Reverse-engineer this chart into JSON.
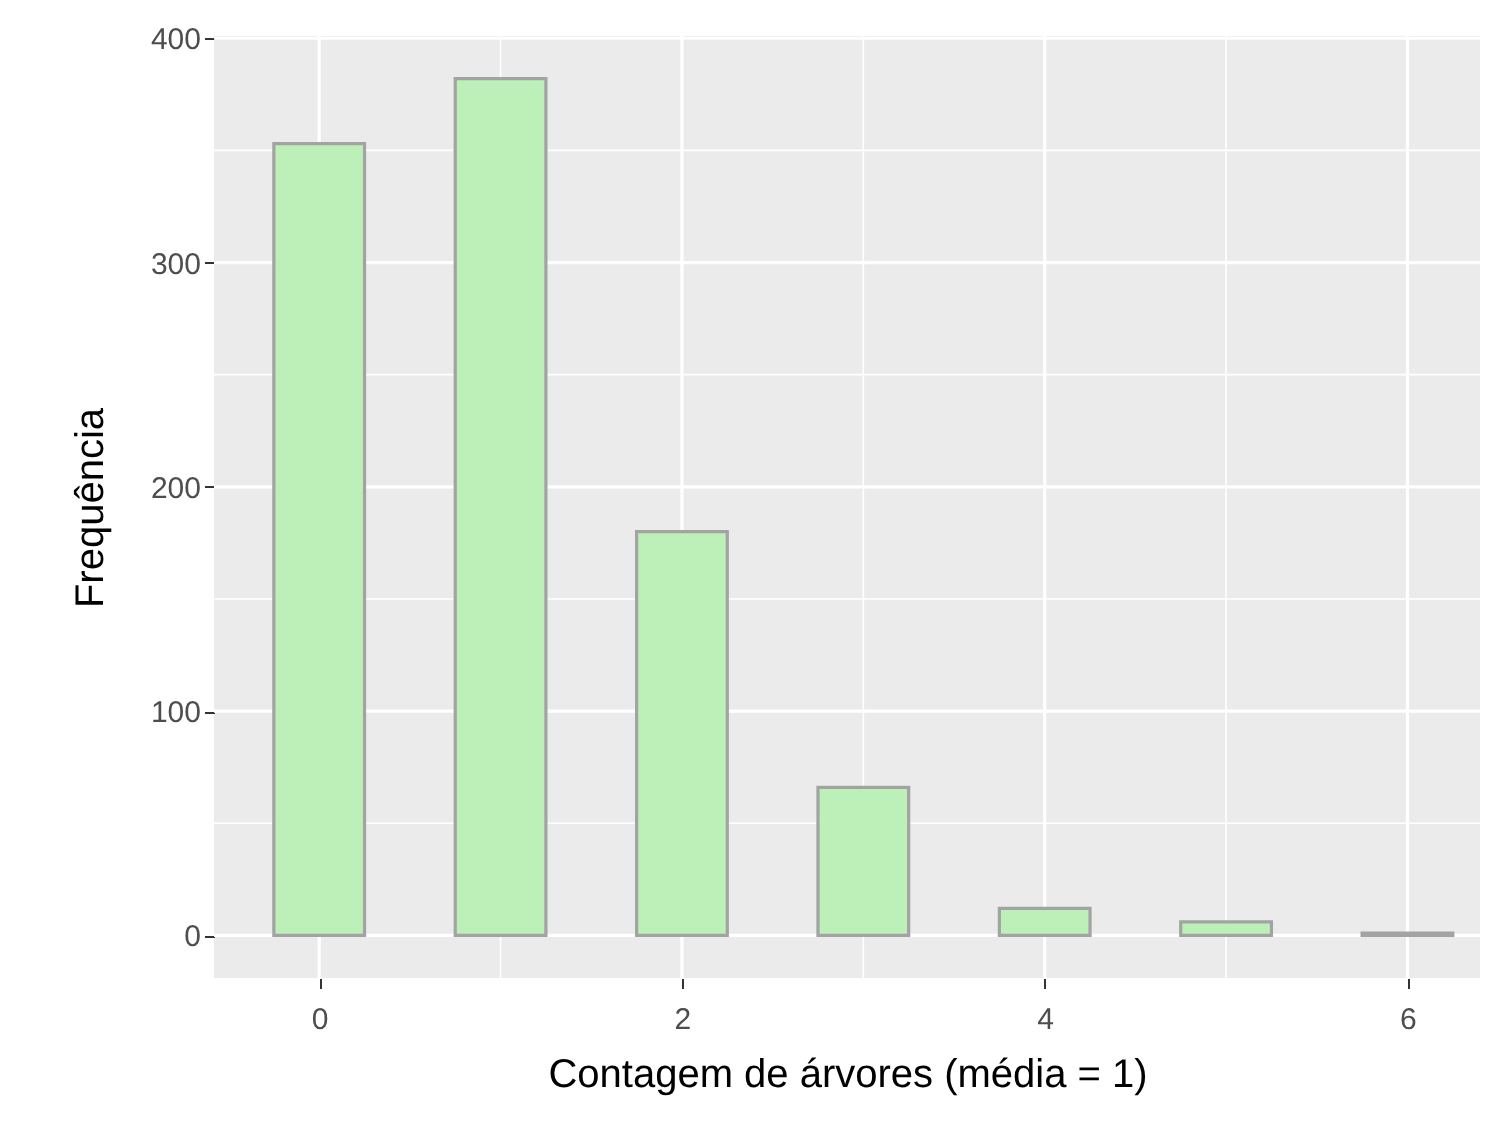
{
  "chart_data": {
    "type": "bar",
    "xlabel": "Contagem de árvores (média = 1)",
    "ylabel": "Frequência",
    "x": [
      0,
      1,
      2,
      3,
      4,
      5,
      6
    ],
    "values": [
      353,
      382,
      180,
      66,
      12,
      6,
      1
    ],
    "color": "#bdefb9",
    "xlim": [
      -0.58,
      6.4
    ],
    "ylim": [
      -19,
      401
    ],
    "xticks": [
      0,
      2,
      4,
      6,
      {
        "value": 1,
        "label": null
      },
      {
        "value": 3,
        "label": null
      },
      {
        "value": 5,
        "label": null
      }
    ],
    "yticks": [
      0,
      100,
      200,
      300,
      400,
      {
        "value": 50,
        "label": null
      },
      {
        "value": 150,
        "label": null
      },
      {
        "value": 250,
        "label": null
      },
      {
        "value": 350,
        "label": null
      }
    ],
    "grid": true
  }
}
